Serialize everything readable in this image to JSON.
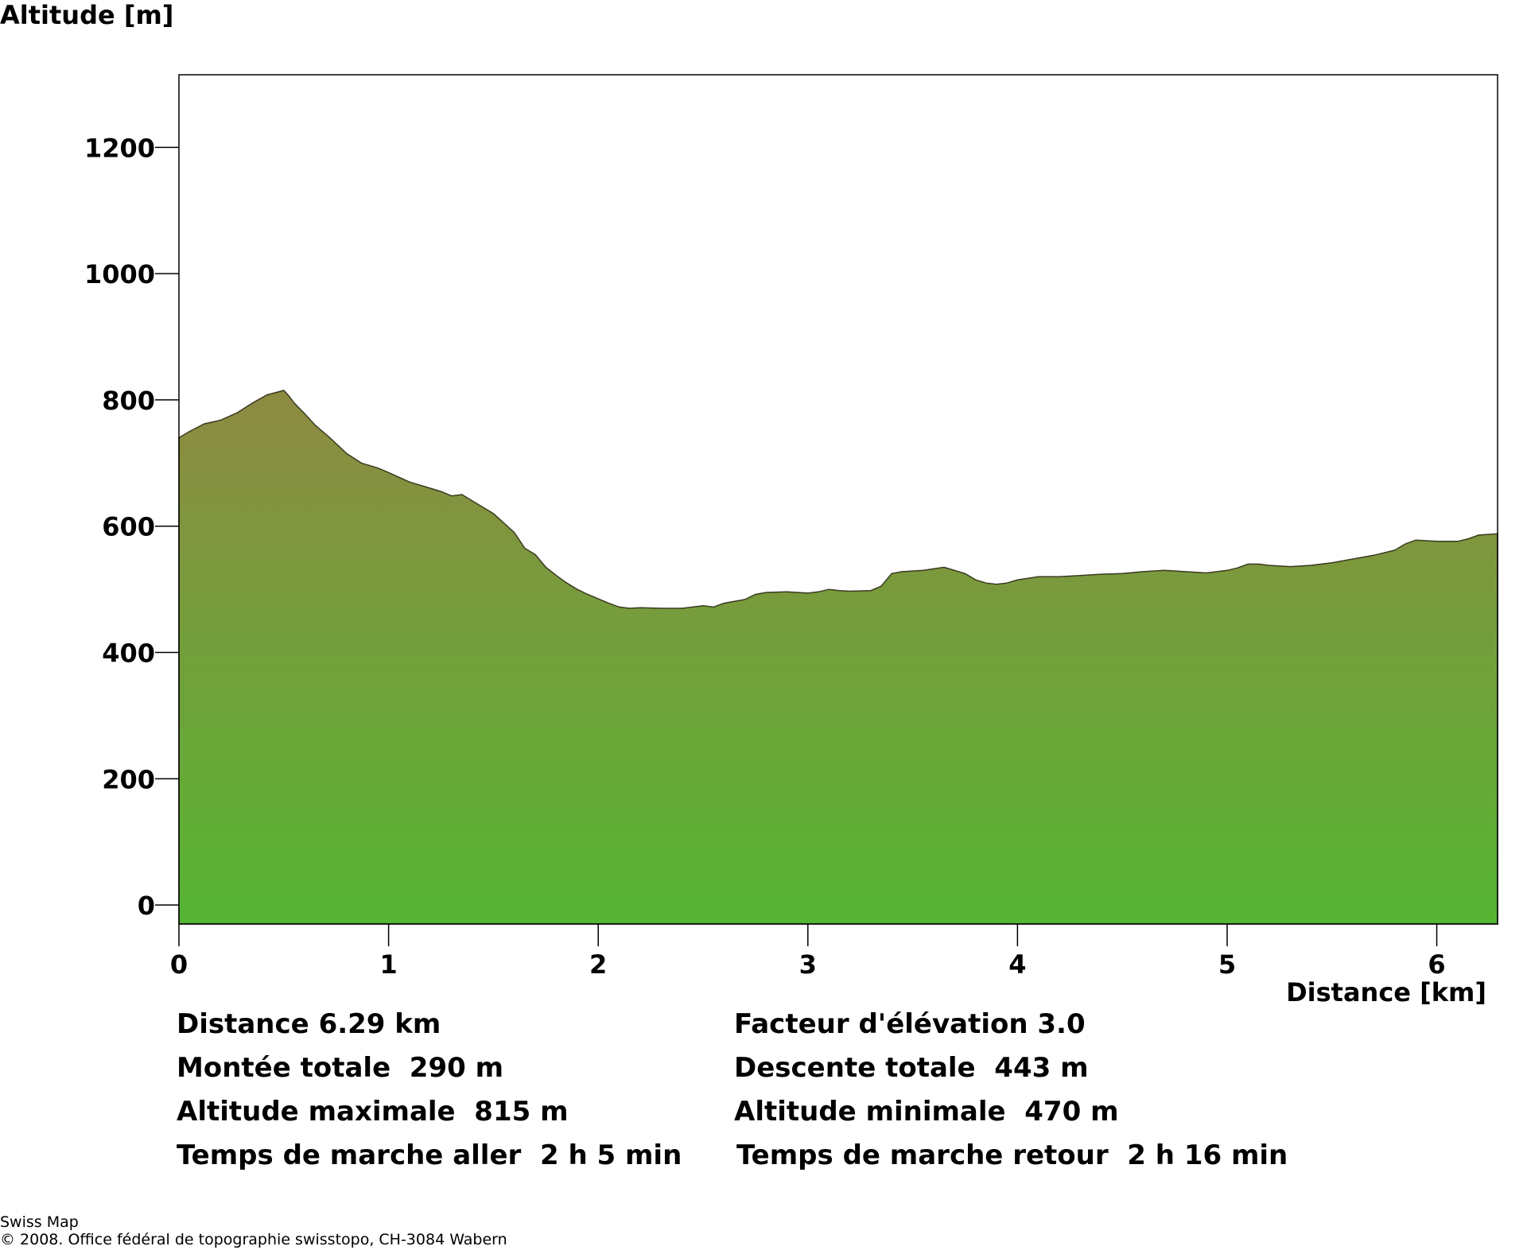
{
  "chart_data": {
    "type": "area",
    "title": "",
    "ylabel": "Altitude [m]",
    "xlabel": "Distance [km]",
    "xlim": [
      0,
      6.29
    ],
    "ylim": [
      -30,
      1315
    ],
    "x_ticks": [
      "0",
      "1",
      "2",
      "3",
      "4",
      "5",
      "6"
    ],
    "y_ticks": [
      "0",
      "200",
      "400",
      "600",
      "800",
      "1000",
      "1200"
    ],
    "grid": false,
    "fill_colors": {
      "top": "#8e8a42",
      "bottom": "#56b533"
    },
    "series": [
      {
        "x": [
          0,
          0.05,
          0.12,
          0.2,
          0.28,
          0.35,
          0.42,
          0.5,
          0.52,
          0.55,
          0.6,
          0.65,
          0.72,
          0.8,
          0.87,
          0.95,
          1.0,
          1.1,
          1.2,
          1.25,
          1.3,
          1.35,
          1.4,
          1.5,
          1.6,
          1.65,
          1.7,
          1.75,
          1.8,
          1.85,
          1.9,
          1.95,
          2.0,
          2.05,
          2.1,
          2.15,
          2.2,
          2.3,
          2.4,
          2.5,
          2.55,
          2.6,
          2.7,
          2.75,
          2.8,
          2.9,
          3.0,
          3.05,
          3.1,
          3.15,
          3.2,
          3.3,
          3.35,
          3.4,
          3.45,
          3.55,
          3.65,
          3.7,
          3.75,
          3.8,
          3.85,
          3.9,
          3.95,
          4.0,
          4.1,
          4.2,
          4.3,
          4.4,
          4.5,
          4.6,
          4.7,
          4.8,
          4.9,
          5.0,
          5.05,
          5.1,
          5.15,
          5.2,
          5.3,
          5.4,
          5.5,
          5.6,
          5.7,
          5.8,
          5.85,
          5.9,
          6.0,
          6.1,
          6.15,
          6.2,
          6.29
        ],
        "y": [
          740,
          750,
          762,
          768,
          780,
          795,
          808,
          815,
          808,
          795,
          778,
          760,
          740,
          715,
          700,
          692,
          685,
          670,
          660,
          655,
          648,
          650,
          640,
          620,
          590,
          565,
          555,
          535,
          522,
          510,
          500,
          492,
          485,
          478,
          472,
          470,
          471,
          470,
          470,
          474,
          472,
          478,
          484,
          492,
          495,
          496,
          494,
          496,
          500,
          498,
          497,
          498,
          505,
          525,
          528,
          530,
          535,
          530,
          525,
          515,
          510,
          508,
          510,
          515,
          520,
          520,
          522,
          524,
          525,
          528,
          530,
          528,
          526,
          530,
          534,
          540,
          540,
          538,
          536,
          538,
          542,
          548,
          554,
          562,
          572,
          578,
          576,
          576,
          580,
          586,
          588
        ]
      }
    ]
  },
  "stats": {
    "distance": "Distance 6.29 km",
    "elevation_factor": "Facteur d'élévation 3.0",
    "total_ascent": "Montée totale  290 m",
    "total_descent": "Descente totale  443 m",
    "max_altitude": "Altitude maximale  815 m",
    "min_altitude": "Altitude minimale  470 m",
    "walk_time_out": "Temps de marche aller  2 h 5 min",
    "walk_time_back": "Temps de marche retour  2 h 16 min"
  },
  "footer": {
    "line1": "Swiss Map",
    "line2": "© 2008. Office fédéral de topographie swisstopo, CH-3084 Wabern"
  }
}
